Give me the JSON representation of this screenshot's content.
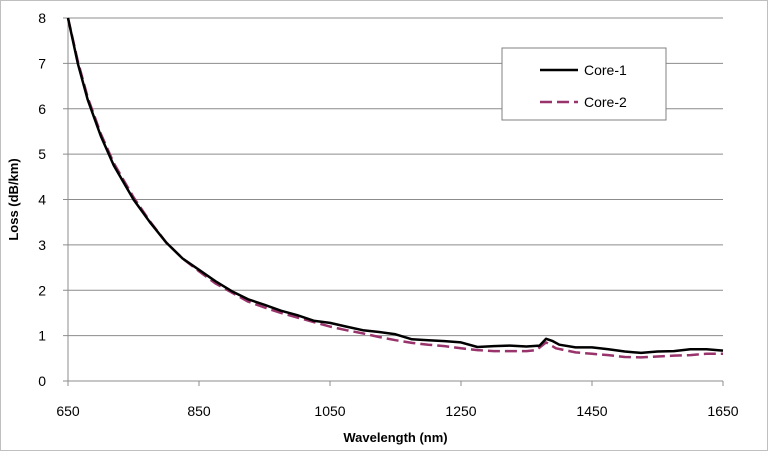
{
  "chart_data": {
    "type": "line",
    "title": "",
    "xlabel": "Wavelength (nm)",
    "ylabel": "Loss (dB/km)",
    "xlim": [
      650,
      1650
    ],
    "ylim": [
      0,
      8
    ],
    "x_ticks": [
      650,
      850,
      1050,
      1250,
      1450,
      1650
    ],
    "y_ticks": [
      0,
      1,
      2,
      3,
      4,
      5,
      6,
      7,
      8
    ],
    "grid": "horizontal",
    "legend_position": "top-right",
    "series": [
      {
        "name": "Core-1",
        "color": "#000000",
        "style": "solid",
        "points": [
          [
            650,
            8.0
          ],
          [
            665,
            7.0
          ],
          [
            680,
            6.2
          ],
          [
            700,
            5.4
          ],
          [
            720,
            4.75
          ],
          [
            750,
            4.0
          ],
          [
            775,
            3.5
          ],
          [
            800,
            3.05
          ],
          [
            825,
            2.7
          ],
          [
            850,
            2.45
          ],
          [
            875,
            2.2
          ],
          [
            900,
            1.98
          ],
          [
            925,
            1.8
          ],
          [
            950,
            1.68
          ],
          [
            975,
            1.55
          ],
          [
            1000,
            1.45
          ],
          [
            1025,
            1.33
          ],
          [
            1050,
            1.28
          ],
          [
            1075,
            1.2
          ],
          [
            1100,
            1.12
          ],
          [
            1125,
            1.08
          ],
          [
            1150,
            1.03
          ],
          [
            1175,
            0.92
          ],
          [
            1200,
            0.9
          ],
          [
            1225,
            0.88
          ],
          [
            1250,
            0.85
          ],
          [
            1275,
            0.75
          ],
          [
            1300,
            0.77
          ],
          [
            1325,
            0.78
          ],
          [
            1350,
            0.76
          ],
          [
            1370,
            0.78
          ],
          [
            1380,
            0.93
          ],
          [
            1390,
            0.88
          ],
          [
            1400,
            0.8
          ],
          [
            1425,
            0.74
          ],
          [
            1450,
            0.74
          ],
          [
            1475,
            0.7
          ],
          [
            1500,
            0.65
          ],
          [
            1525,
            0.62
          ],
          [
            1550,
            0.65
          ],
          [
            1575,
            0.66
          ],
          [
            1600,
            0.7
          ],
          [
            1625,
            0.7
          ],
          [
            1650,
            0.67
          ]
        ]
      },
      {
        "name": "Core-2",
        "color": "#99336b",
        "style": "dashed",
        "points": [
          [
            650,
            8.0
          ],
          [
            665,
            7.05
          ],
          [
            680,
            6.25
          ],
          [
            700,
            5.45
          ],
          [
            720,
            4.8
          ],
          [
            750,
            4.05
          ],
          [
            775,
            3.52
          ],
          [
            800,
            3.05
          ],
          [
            825,
            2.7
          ],
          [
            850,
            2.42
          ],
          [
            875,
            2.15
          ],
          [
            900,
            1.95
          ],
          [
            925,
            1.75
          ],
          [
            950,
            1.62
          ],
          [
            975,
            1.5
          ],
          [
            1000,
            1.4
          ],
          [
            1025,
            1.3
          ],
          [
            1050,
            1.2
          ],
          [
            1075,
            1.12
          ],
          [
            1100,
            1.05
          ],
          [
            1125,
            0.97
          ],
          [
            1150,
            0.9
          ],
          [
            1175,
            0.84
          ],
          [
            1200,
            0.8
          ],
          [
            1225,
            0.77
          ],
          [
            1250,
            0.72
          ],
          [
            1275,
            0.68
          ],
          [
            1300,
            0.66
          ],
          [
            1325,
            0.66
          ],
          [
            1350,
            0.66
          ],
          [
            1365,
            0.68
          ],
          [
            1380,
            0.85
          ],
          [
            1395,
            0.72
          ],
          [
            1425,
            0.63
          ],
          [
            1450,
            0.6
          ],
          [
            1475,
            0.57
          ],
          [
            1500,
            0.53
          ],
          [
            1525,
            0.52
          ],
          [
            1550,
            0.54
          ],
          [
            1575,
            0.56
          ],
          [
            1600,
            0.57
          ],
          [
            1625,
            0.6
          ],
          [
            1650,
            0.6
          ]
        ]
      }
    ]
  }
}
